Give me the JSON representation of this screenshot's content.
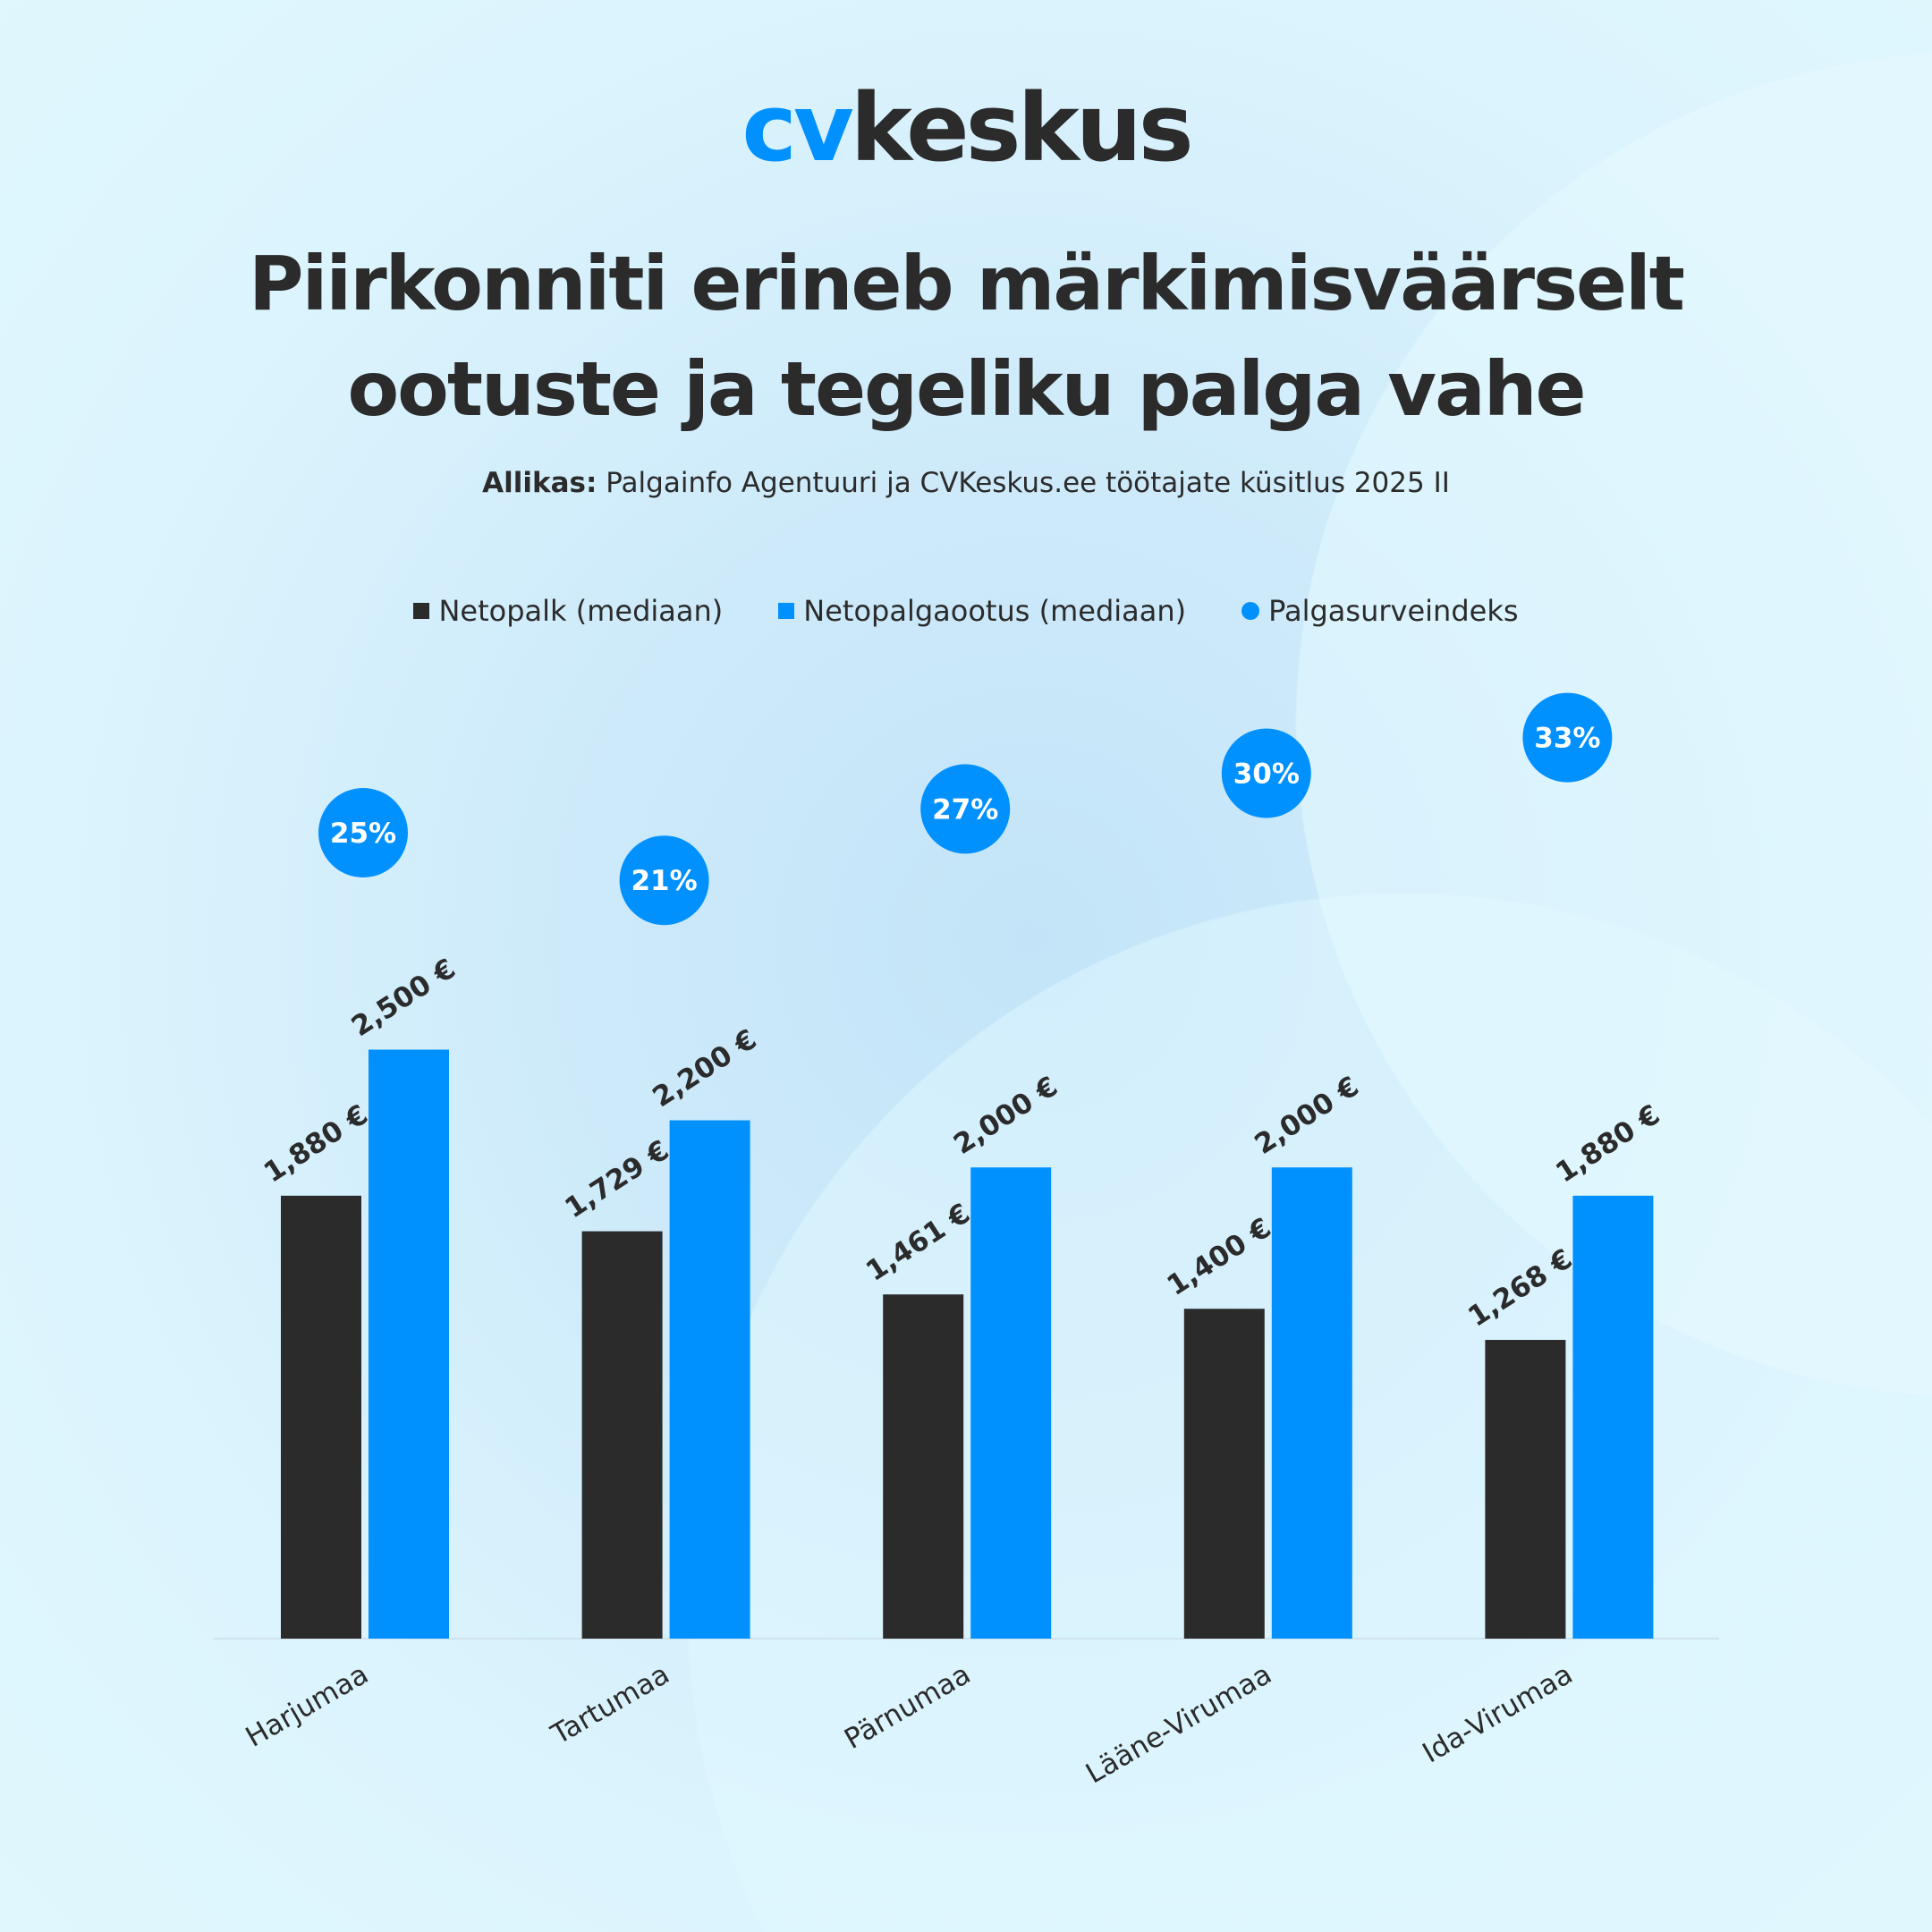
{
  "logo": {
    "part1": "cv",
    "part2": "keskus"
  },
  "title": [
    "Piirkonniti erineb märkimisväärselt",
    "ootuste ja tegeliku palga vahe"
  ],
  "subtitle": {
    "label": "Allikas:",
    "text": " Palgainfo Agentuuri ja CVKeskus.ee töötajate küsitlus 2025 II"
  },
  "colors": {
    "netopalk": "#2b2b2b",
    "ootus": "#0091ff",
    "index": "#0091ff"
  },
  "chart_data": {
    "type": "bar",
    "categories": [
      "Harjumaa",
      "Tartumaa",
      "Pärnumaa",
      "Lääne-Virumaa",
      "Ida-Virumaa"
    ],
    "series": [
      {
        "name": "Netopalk (mediaan)",
        "values": [
          1880,
          1729,
          1461,
          1400,
          1268
        ],
        "labels": [
          "1,880 €",
          "1,729 €",
          "1,461 €",
          "1,400 €",
          "1,268 €"
        ]
      },
      {
        "name": "Netopalgaootus (mediaan)",
        "values": [
          2500,
          2200,
          2000,
          2000,
          1880
        ],
        "labels": [
          "2,500 €",
          "2,200 €",
          "2,000 €",
          "2,000 €",
          "1,880 €"
        ]
      },
      {
        "name": "Palgasurveindeks",
        "values": [
          25,
          21,
          27,
          30,
          33
        ],
        "labels": [
          "25%",
          "21%",
          "27%",
          "30%",
          "33%"
        ]
      }
    ],
    "legend_position": "top",
    "grid": false,
    "ylim": [
      0,
      2500
    ]
  }
}
